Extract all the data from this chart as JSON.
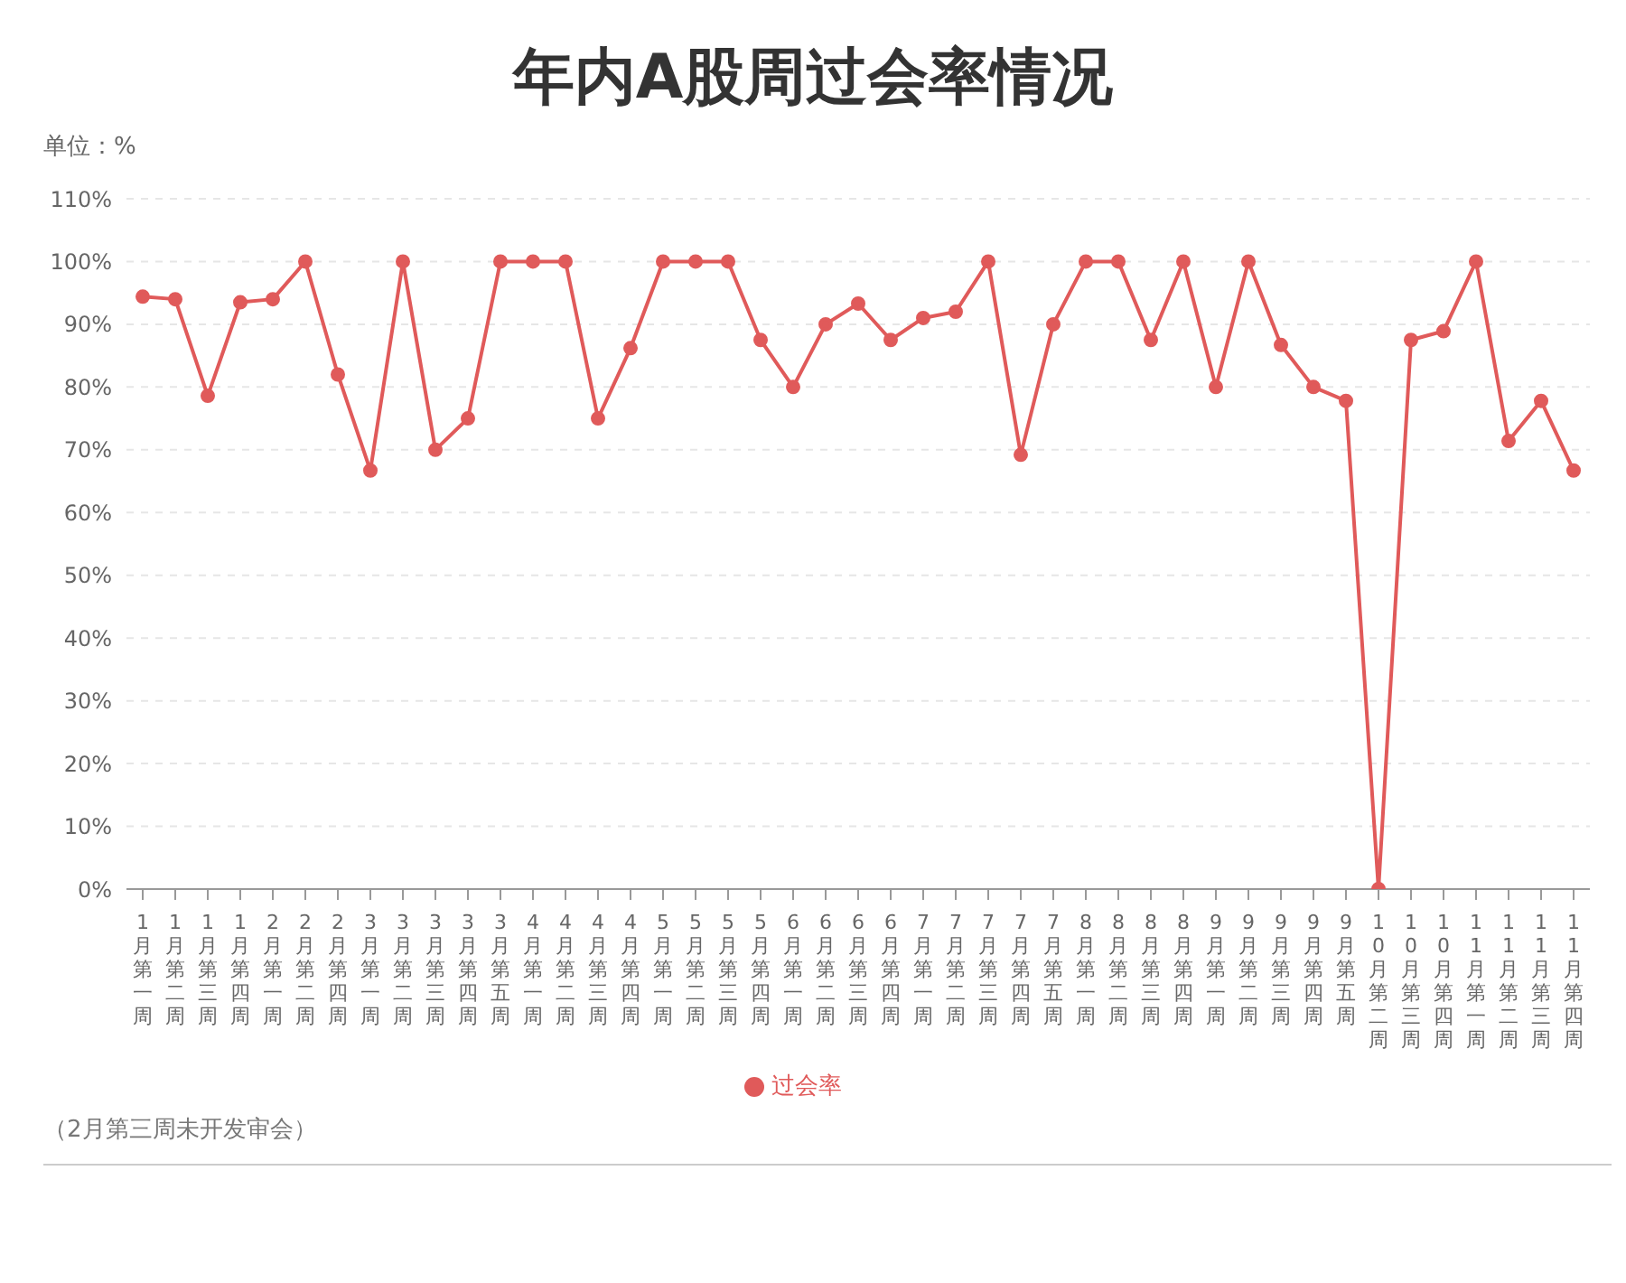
{
  "chart_data": {
    "type": "line",
    "title": "年内A股周过会率情况",
    "ylabel": "单位：%",
    "categories": [
      "1月第一周",
      "1月第二周",
      "1月第三周",
      "1月第四周",
      "2月第一周",
      "2月第二周",
      "2月第四周",
      "3月第一周",
      "3月第二周",
      "3月第三周",
      "3月第四周",
      "3月第五周",
      "4月第一周",
      "4月第二周",
      "4月第三周",
      "4月第四周",
      "5月第一周",
      "5月第二周",
      "5月第三周",
      "5月第四周",
      "6月第一周",
      "6月第二周",
      "6月第三周",
      "6月第四周",
      "7月第一周",
      "7月第二周",
      "7月第三周",
      "7月第四周",
      "7月第五周",
      "8月第一周",
      "8月第二周",
      "8月第三周",
      "8月第四周",
      "9月第一周",
      "9月第二周",
      "9月第三周",
      "9月第四周",
      "9月第五周",
      "10月第二周",
      "10月第三周",
      "10月第四周",
      "11月第一周",
      "11月第二周",
      "11月第三周",
      "11月第四周"
    ],
    "series": [
      {
        "name": "过会率",
        "color": "#e05a5a",
        "values": [
          94.4,
          94,
          78.6,
          93.5,
          94,
          100,
          82,
          66.7,
          100,
          70,
          75,
          100,
          100,
          100,
          75,
          86.2,
          100,
          100,
          100,
          87.5,
          80,
          90,
          93.3,
          87.5,
          91,
          92,
          100,
          69.2,
          90,
          100,
          100,
          87.5,
          100,
          80,
          100,
          86.7,
          80,
          77.8,
          0,
          87.5,
          88.9,
          100,
          71.4,
          77.8,
          66.7
        ]
      }
    ],
    "ylim": [
      0,
      110
    ],
    "yticks": [
      {
        "value": 0,
        "label": "0%"
      },
      {
        "value": 10,
        "label": "10%"
      },
      {
        "value": 20,
        "label": "20%"
      },
      {
        "value": 30,
        "label": "30%"
      },
      {
        "value": 40,
        "label": "40%"
      },
      {
        "value": 50,
        "label": "50%"
      },
      {
        "value": 60,
        "label": "60%"
      },
      {
        "value": 70,
        "label": "70%"
      },
      {
        "value": 80,
        "label": "80%"
      },
      {
        "value": 90,
        "label": "90%"
      },
      {
        "value": 100,
        "label": "100%"
      },
      {
        "value": 110,
        "label": "110%"
      }
    ],
    "grid": "y",
    "legend": "bottom",
    "marker": "circle",
    "line_style": "solid",
    "annotations": [
      "（2月第三周未开发审会）"
    ]
  }
}
